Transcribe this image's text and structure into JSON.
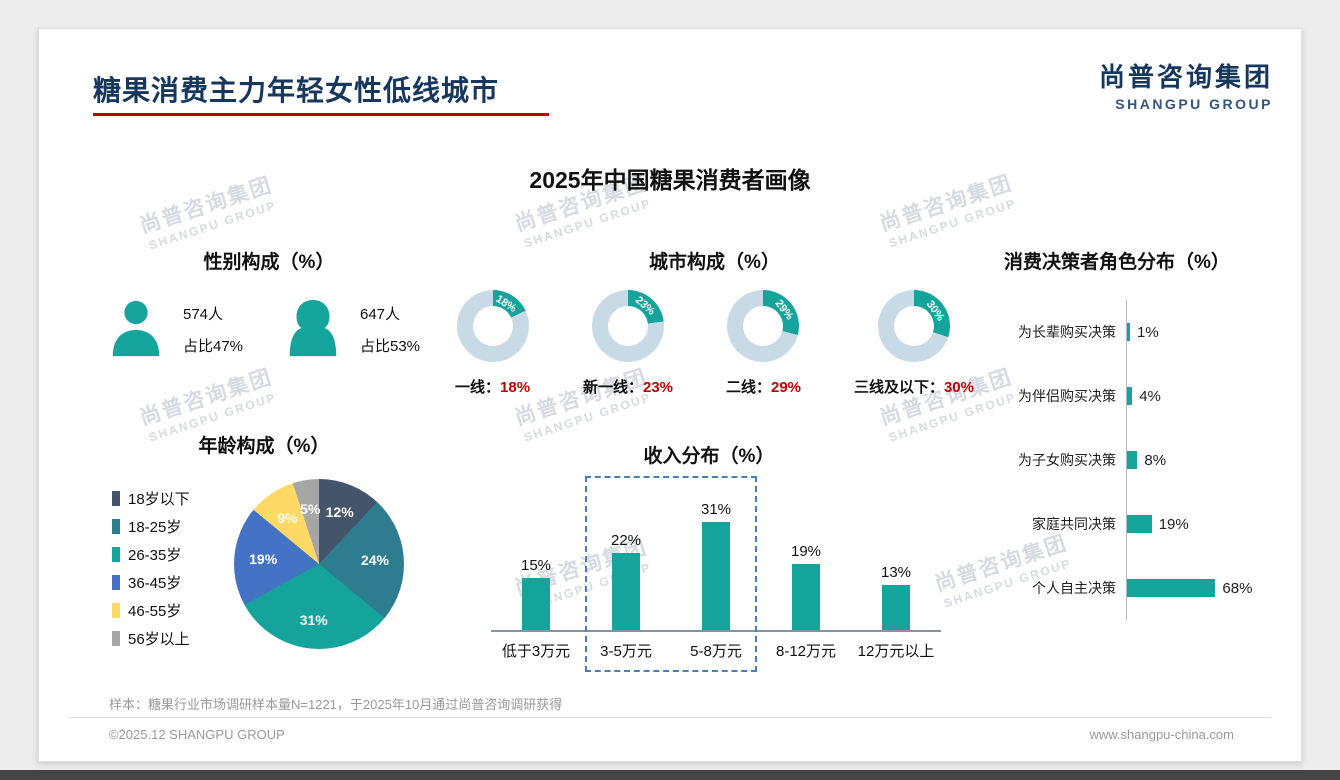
{
  "page": {
    "title": "糖果消费主力年轻女性低线城市",
    "main_title": "2025年中国糖果消费者画像",
    "logo_cn": "尚普咨询集团",
    "logo_en": "SHANGPU GROUP",
    "watermark_cn": "尚普咨询集团",
    "watermark_en": "SHANGPU GROUP",
    "sample_note": "样本：糖果行业市场调研样本量N=1221，于2025年10月通过尚普咨询调研获得",
    "copyright": "©2025.12 SHANGPU GROUP",
    "website": "www.shangpu-china.com"
  },
  "colors": {
    "teal": "#14A49B",
    "donut_track": "#C9DAE7",
    "navy": "#17375D",
    "red": "#C00000",
    "highlight_border": "#4A7EBB"
  },
  "chart_data": [
    {
      "type": "table",
      "title": "性别构成（%）",
      "rows": [
        {
          "label": "男",
          "count": "574人",
          "share": "占比47%"
        },
        {
          "label": "女",
          "count": "647人",
          "share": "占比53%"
        }
      ]
    },
    {
      "type": "pie",
      "subtype": "donut",
      "title": "城市构成（%）",
      "items": [
        {
          "label": "一线",
          "value": 18
        },
        {
          "label": "新一线",
          "value": 23
        },
        {
          "label": "二线",
          "value": 29
        },
        {
          "label": "三线及以下",
          "value": 30
        }
      ],
      "unit": "%"
    },
    {
      "type": "pie",
      "title": "年龄构成（%）",
      "categories": [
        "18岁以下",
        "18-25岁",
        "26-35岁",
        "36-45岁",
        "46-55岁",
        "56岁以上"
      ],
      "values": [
        12,
        24,
        31,
        19,
        9,
        5
      ],
      "slice_colors": [
        "#44546A",
        "#2E7D8F",
        "#14A49B",
        "#4472C4",
        "#FFD966",
        "#A6A6A6"
      ]
    },
    {
      "type": "bar",
      "title": "收入分布（%）",
      "categories": [
        "低于3万元",
        "3-5万元",
        "5-8万元",
        "8-12万元",
        "12万元以上"
      ],
      "values": [
        15,
        22,
        31,
        19,
        13
      ],
      "highlight_range": [
        1,
        2
      ]
    },
    {
      "type": "bar",
      "orientation": "horizontal",
      "title": "消费决策者角色分布（%）",
      "categories": [
        "为长辈购买决策",
        "为伴侣购买决策",
        "为子女购买决策",
        "家庭共同决策",
        "个人自主决策"
      ],
      "values": [
        1,
        4,
        8,
        19,
        68
      ]
    }
  ]
}
